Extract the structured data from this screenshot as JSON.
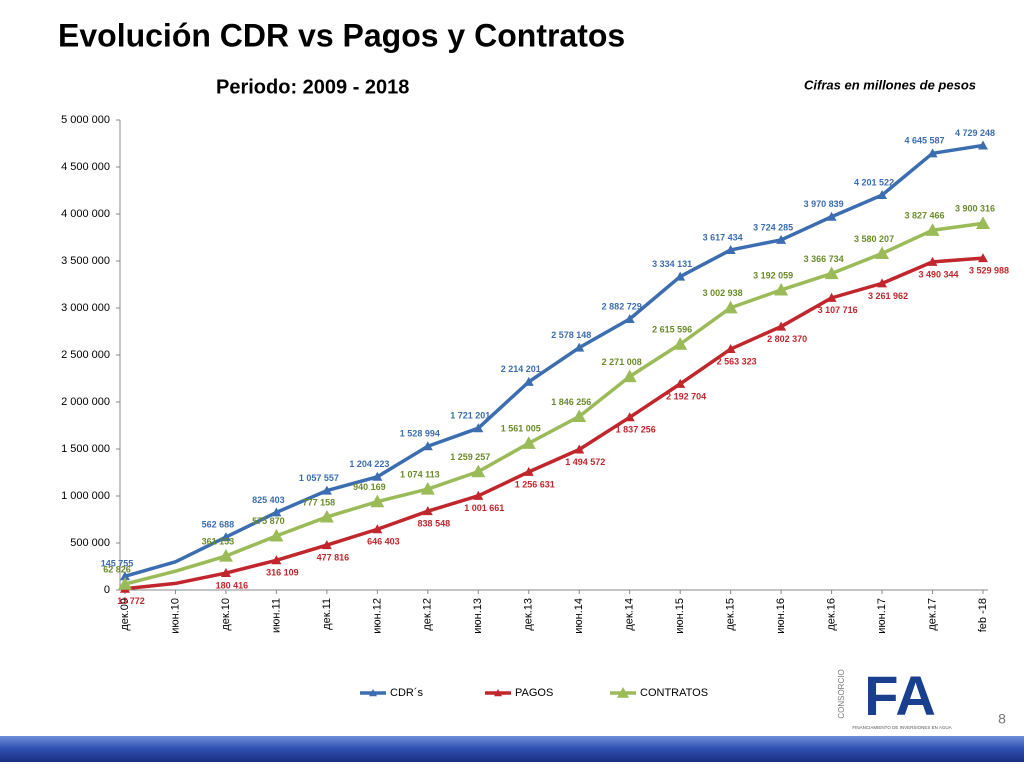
{
  "chart_data": {
    "type": "line",
    "title": "Evolución CDR vs Pagos y Contratos",
    "subtitle": "Periodo: 2009 - 2018",
    "note": "Cifras en millones de pesos",
    "page_number": "8",
    "logo": {
      "side": "CONSORCIO",
      "name": "FA",
      "caption": "FINANCIAMIENTO DE INVERSIONES EN AGUA"
    },
    "categories": [
      "дек.09",
      "июн.10",
      "дек.10",
      "июн.11",
      "дек.11",
      "июн.12",
      "дек.12",
      "июн.13",
      "дек.13",
      "июн.14",
      "дек.14",
      "июн.15",
      "дек.15",
      "июн.16",
      "дек.16",
      "июн.17",
      "дек.17",
      "feb -18"
    ],
    "ylim": [
      0,
      5000000
    ],
    "yticks": [
      0,
      {
        "value": 500000,
        "label": "500 000"
      },
      {
        "value": 1000000,
        "label": "1 000 000"
      },
      {
        "value": 1500000,
        "label": "1 500 000"
      },
      {
        "value": 2000000,
        "label": "2 000 000"
      },
      {
        "value": 2500000,
        "label": "2 500 000"
      },
      {
        "value": 3000000,
        "label": "3 000 000"
      },
      {
        "value": 3500000,
        "label": "3 500 000"
      },
      {
        "value": 4000000,
        "label": "4 000 000"
      },
      {
        "value": 4500000,
        "label": "4 500 000"
      },
      {
        "value": 5000000,
        "label": "5 000 000"
      }
    ],
    "legend": "bottom",
    "series": [
      {
        "name": "CDR´s",
        "color": "#3c6db0",
        "values": [
          145755,
          300000,
          562688,
          825403,
          1057557,
          1204223,
          1528994,
          1721201,
          2214201,
          2578148,
          2882729,
          3334131,
          3617434,
          3724285,
          3970839,
          4201522,
          4645587,
          4729248
        ],
        "value_labels": [
          "145 755",
          null,
          "562 688",
          "825 403",
          "1 057 557",
          "1 204 223",
          "1 528 994",
          "1 721 201",
          "2 214 201",
          "2 578 148",
          "2 882 729",
          "3 334 131",
          "3 617 434",
          "3 724 285",
          "3 970 839",
          "4 201 522",
          "4 645 587",
          "4 729 248"
        ]
      },
      {
        "name": "PAGOS",
        "color": "#c0262c",
        "values": [
          13772,
          70000,
          180416,
          316109,
          477816,
          646403,
          838548,
          1001661,
          1256631,
          1494572,
          1837256,
          2192704,
          2563323,
          2802370,
          3107716,
          3261962,
          3490344,
          3529988
        ],
        "value_labels": [
          "13 772",
          null,
          "180 416",
          "316 109",
          "477 816",
          "646 403",
          "838 548",
          "1 001 661",
          "1 256 631",
          "1 494 572",
          "1 837 256",
          "2 192 704",
          "2 563 323",
          "2 802 370",
          "3 107 716",
          "3 261 962",
          "3 490 344",
          "3 529 988"
        ]
      },
      {
        "name": "CONTRATOS",
        "color": "#9bbb59",
        "values": [
          62826,
          200000,
          361153,
          575870,
          777158,
          940169,
          1074113,
          1259257,
          1561005,
          1846256,
          2271008,
          2615596,
          3002938,
          3192059,
          3366734,
          3580207,
          3827466,
          3900316
        ],
        "value_labels": [
          "62 826",
          null,
          "361 153",
          "575 870",
          "777 158",
          "940 169",
          "1 074 113",
          "1 259 257",
          "1 561 005",
          "1 846 256",
          "2 271 008",
          "2 615 596",
          "3 002 938",
          "3 192 059",
          "3 366 734",
          "3 580 207",
          "3 827 466",
          "3 900 316"
        ]
      }
    ]
  }
}
